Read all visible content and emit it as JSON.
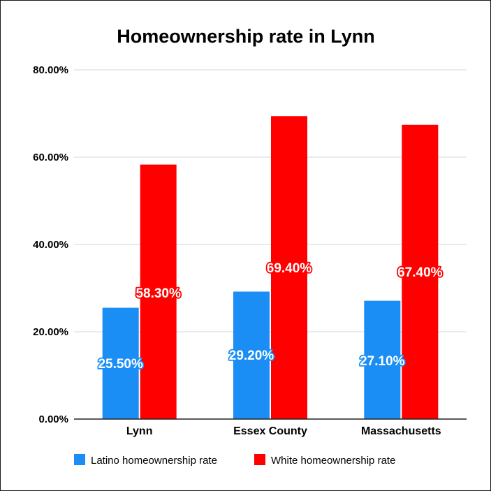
{
  "chart_data": {
    "type": "bar",
    "title": "Homeownership rate in Lynn",
    "xlabel": "",
    "ylabel": "",
    "categories": [
      "Lynn",
      "Essex County",
      "Massachusetts"
    ],
    "series": [
      {
        "name": "Latino homeownership rate",
        "color": "#1a8ef5",
        "values": [
          25.5,
          29.2,
          27.1
        ],
        "labels": [
          "25.50%",
          "29.20%",
          "27.10%"
        ]
      },
      {
        "name": "White homeownership rate",
        "color": "#ff0000",
        "values": [
          58.3,
          69.4,
          67.4
        ],
        "labels": [
          "58.30%",
          "69.40%",
          "67.40%"
        ]
      }
    ],
    "ylim": [
      0,
      80
    ],
    "yticks": [
      0,
      20,
      40,
      60,
      80
    ],
    "ytick_labels": [
      "0.00%",
      "20.00%",
      "40.00%",
      "60.00%",
      "80.00%"
    ],
    "grid": true,
    "legend_position": "bottom"
  }
}
